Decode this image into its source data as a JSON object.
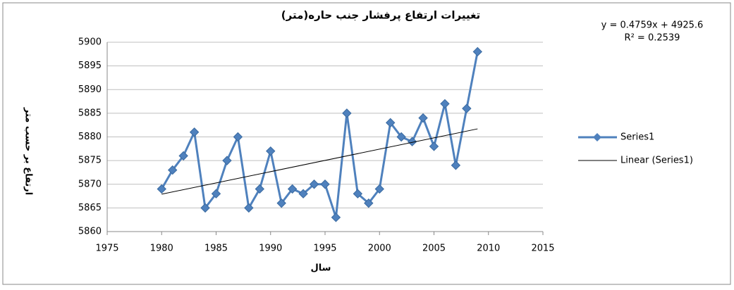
{
  "chart_data": {
    "type": "line",
    "title": "تغییرات ارتفاع پرفشار جنب حاره(متر)",
    "x_label": "سال",
    "y_label": "ارتفاع بر حسب متر",
    "annotations": [
      "y = 0.4759x + 4925.6",
      "R² = 0.2539"
    ],
    "series": [
      {
        "name": "Series1",
        "color": "#4f81bd",
        "marker": "diamond",
        "x": [
          1980,
          1981,
          1982,
          1983,
          1984,
          1985,
          1986,
          1987,
          1988,
          1989,
          1990,
          1991,
          1992,
          1993,
          1994,
          1995,
          1996,
          1997,
          1998,
          1999,
          2000,
          2001,
          2002,
          2003,
          2004,
          2005,
          2006,
          2007,
          2008,
          2009
        ],
        "values": [
          5869,
          5873,
          5876,
          5881,
          5865,
          5868,
          5875,
          5880,
          5865,
          5869,
          5877,
          5866,
          5869,
          5868,
          5870,
          5870,
          5863,
          5885,
          5868,
          5866,
          5869,
          5883,
          5880,
          5879,
          5884,
          5878,
          5887,
          5874,
          5886,
          5898
        ]
      },
      {
        "name": "Linear (Series1)",
        "color": "#000000",
        "marker": "none",
        "x": [
          1980,
          2009
        ],
        "values": [
          5867.9,
          5881.7
        ]
      }
    ],
    "xlim": [
      1975,
      2015
    ],
    "xticks": [
      1975,
      1980,
      1985,
      1990,
      1995,
      2000,
      2005,
      2010,
      2015
    ],
    "ylim": [
      5860,
      5900
    ],
    "yticks": [
      5860,
      5865,
      5870,
      5875,
      5880,
      5885,
      5890,
      5895,
      5900
    ],
    "grid": true,
    "legend": "right"
  }
}
